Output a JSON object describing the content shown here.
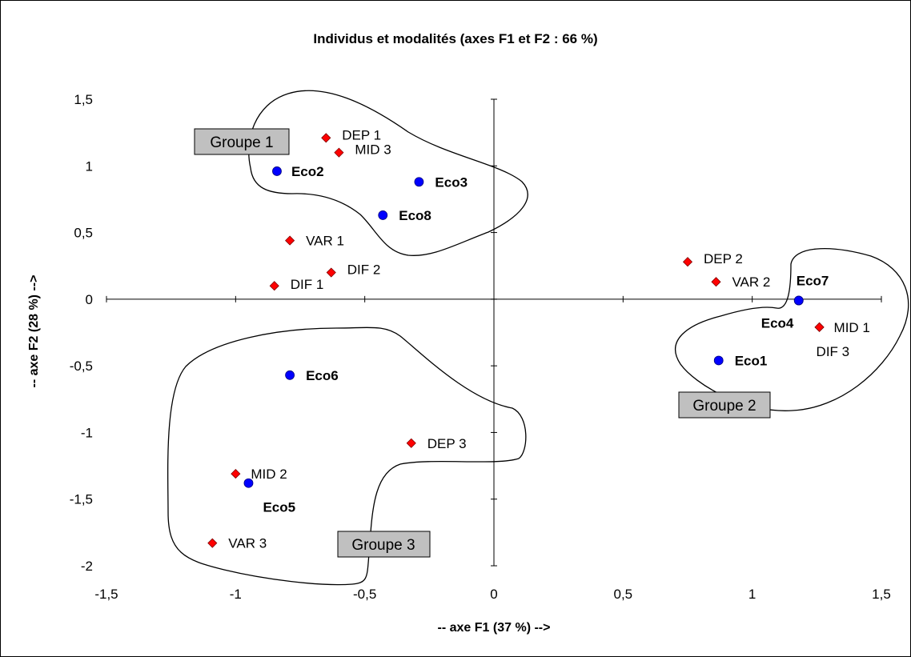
{
  "chart_data": {
    "type": "scatter",
    "title": "Individus et modalités (axes F1 et F2 : 66 %)",
    "xlabel": "-- axe F1 (37 %) -->",
    "ylabel": "-- axe F2 (28 %) -->",
    "xlim": [
      -1.5,
      1.5
    ],
    "ylim": [
      -2,
      1.5
    ],
    "x_ticks": [
      -1.5,
      -1,
      -0.5,
      0,
      0.5,
      1,
      1.5
    ],
    "y_ticks": [
      1.5,
      1,
      0.5,
      0,
      -0.5,
      -1,
      -1.5,
      -2
    ],
    "x_tick_labels": [
      "-1,5",
      "-1",
      "-0,5",
      "0",
      "0,5",
      "1",
      "1,5"
    ],
    "y_tick_labels": [
      "1,5",
      "1",
      "0,5",
      "0",
      "-0,5",
      "-1",
      "-1,5",
      "-2"
    ],
    "grid": false,
    "series": [
      {
        "kind": "individus",
        "marker": "circle",
        "color": "#0000ff",
        "points": [
          {
            "label": "Eco1",
            "x": 0.87,
            "y": -0.46
          },
          {
            "label": "Eco2",
            "x": -0.84,
            "y": 0.96
          },
          {
            "label": "Eco3",
            "x": -0.29,
            "y": 0.88
          },
          {
            "label": "Eco4",
            "x": 1.18,
            "y": -0.01
          },
          {
            "label": "Eco5",
            "x": -0.95,
            "y": -1.38
          },
          {
            "label": "Eco6",
            "x": -0.79,
            "y": -0.57
          },
          {
            "label": "Eco7",
            "x": 1.18,
            "y": -0.01
          },
          {
            "label": "Eco8",
            "x": -0.43,
            "y": 0.63
          }
        ]
      },
      {
        "kind": "modalites",
        "marker": "diamond",
        "color": "#ff0000",
        "points": [
          {
            "label": "DEP 1",
            "x": -0.65,
            "y": 1.21
          },
          {
            "label": "MID 3",
            "x": -0.6,
            "y": 1.1
          },
          {
            "label": "VAR 1",
            "x": -0.79,
            "y": 0.44
          },
          {
            "label": "DIF 2",
            "x": -0.63,
            "y": 0.2
          },
          {
            "label": "DIF 1",
            "x": -0.85,
            "y": 0.1
          },
          {
            "label": "DEP 2",
            "x": 0.75,
            "y": 0.28
          },
          {
            "label": "VAR 2",
            "x": 0.86,
            "y": 0.13
          },
          {
            "label": "MID 1",
            "x": 1.26,
            "y": -0.21
          },
          {
            "label": "DIF 3",
            "x": 1.26,
            "y": -0.21
          },
          {
            "label": "DEP 3",
            "x": -0.32,
            "y": -1.08
          },
          {
            "label": "MID 2",
            "x": -1.0,
            "y": -1.31
          },
          {
            "label": "VAR 3",
            "x": -1.09,
            "y": -1.83
          }
        ]
      }
    ],
    "groups": [
      {
        "label": "Groupe 1"
      },
      {
        "label": "Groupe 2"
      },
      {
        "label": "Groupe 3"
      }
    ]
  }
}
